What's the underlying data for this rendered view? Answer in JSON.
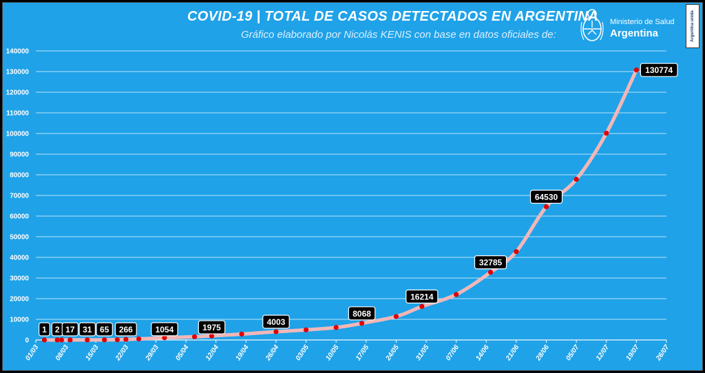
{
  "header": {
    "title": "COVID-19  |  TOTAL DE CASOS DETECTADOS EN ARGENTINA",
    "subtitle": "Gráfico elaborado por Nicolás KENIS con base en datos oficiales de:",
    "logo_line1": "Ministerio de Salud",
    "logo_line2": "Argentina",
    "badge": "Argentina unida"
  },
  "colors": {
    "background": "#1fa2e8",
    "gridline": "#ffffff",
    "line": "#f4b6b6",
    "marker": "#e00000",
    "label_bg": "#000000",
    "label_text": "#ffffff"
  },
  "chart_data": {
    "type": "line",
    "title": "",
    "xlabel": "",
    "ylabel": "",
    "ylim": [
      0,
      140000
    ],
    "yticks": [
      0,
      10000,
      20000,
      30000,
      40000,
      50000,
      60000,
      70000,
      80000,
      90000,
      100000,
      110000,
      120000,
      130000,
      140000
    ],
    "xlim": [
      "2020-03-01",
      "2020-07-26"
    ],
    "xticks": [
      "01/03",
      "08/03",
      "15/03",
      "22/03",
      "29/03",
      "05/04",
      "12/04",
      "19/04",
      "26/04",
      "03/05",
      "10/05",
      "17/05",
      "24/05",
      "31/05",
      "07/06",
      "14/06",
      "21/06",
      "28/06",
      "05/07",
      "12/07",
      "19/07",
      "26/07"
    ],
    "grid": true,
    "series": [
      {
        "points": [
          [
            "2020-03-03",
            1
          ],
          [
            "2020-03-06",
            2
          ],
          [
            "2020-03-07",
            2
          ],
          [
            "2020-03-09",
            17
          ],
          [
            "2020-03-13",
            31
          ],
          [
            "2020-03-17",
            65
          ],
          [
            "2020-03-20",
            128
          ],
          [
            "2020-03-22",
            266
          ],
          [
            "2020-03-25",
            502
          ],
          [
            "2020-03-31",
            1054
          ],
          [
            "2020-04-07",
            1554
          ],
          [
            "2020-04-11",
            1975
          ],
          [
            "2020-04-18",
            2839
          ],
          [
            "2020-04-26",
            4003
          ],
          [
            "2020-05-03",
            4887
          ],
          [
            "2020-05-10",
            6034
          ],
          [
            "2020-05-16",
            8068
          ],
          [
            "2020-05-24",
            11353
          ],
          [
            "2020-05-30",
            16214
          ],
          [
            "2020-06-07",
            22020
          ],
          [
            "2020-06-15",
            32785
          ],
          [
            "2020-06-21",
            42785
          ],
          [
            "2020-06-28",
            64530
          ],
          [
            "2020-07-05",
            77815
          ],
          [
            "2020-07-12",
            100153
          ],
          [
            "2020-07-19",
            130774
          ]
        ]
      }
    ],
    "labels": [
      {
        "date": "2020-03-03",
        "value": 1,
        "text": "1"
      },
      {
        "date": "2020-03-06",
        "value": 2,
        "text": "2"
      },
      {
        "date": "2020-03-09",
        "value": 17,
        "text": "17"
      },
      {
        "date": "2020-03-13",
        "value": 31,
        "text": "31"
      },
      {
        "date": "2020-03-17",
        "value": 65,
        "text": "65"
      },
      {
        "date": "2020-03-22",
        "value": 266,
        "text": "266"
      },
      {
        "date": "2020-03-31",
        "value": 1054,
        "text": "1054"
      },
      {
        "date": "2020-04-11",
        "value": 1975,
        "text": "1975"
      },
      {
        "date": "2020-04-26",
        "value": 4003,
        "text": "4003"
      },
      {
        "date": "2020-05-16",
        "value": 8068,
        "text": "8068"
      },
      {
        "date": "2020-05-30",
        "value": 16214,
        "text": "16214"
      },
      {
        "date": "2020-06-15",
        "value": 32785,
        "text": "32785"
      },
      {
        "date": "2020-06-28",
        "value": 64530,
        "text": "64530"
      },
      {
        "date": "2020-07-19",
        "value": 130774,
        "text": "130774"
      }
    ]
  }
}
